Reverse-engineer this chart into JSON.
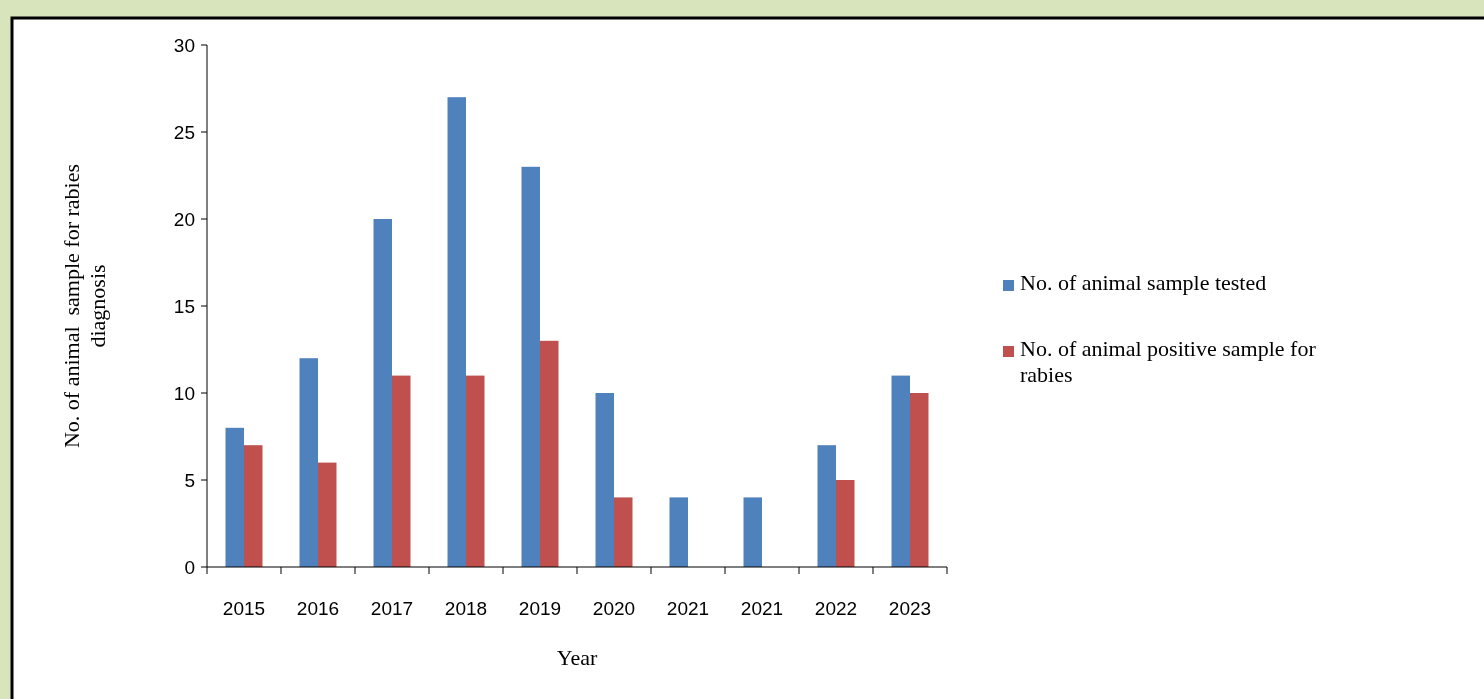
{
  "chart_data": {
    "type": "bar",
    "xlabel": "Year",
    "ylabel": "No. of animal  sample for rabies diagnosis",
    "categories": [
      "2015",
      "2016",
      "2017",
      "2018",
      "2019",
      "2020",
      "2021",
      "2021",
      "2022",
      "2023"
    ],
    "series": [
      {
        "name": "No. of animal sample tested",
        "color": "#4f81bd",
        "values": [
          8,
          12,
          20,
          27,
          23,
          10,
          4,
          4,
          7,
          11
        ]
      },
      {
        "name": "No. of animal positive sample for rabies",
        "color": "#c0504d",
        "values": [
          7,
          6,
          11,
          11,
          13,
          4,
          0,
          0,
          5,
          10
        ]
      }
    ],
    "ylim": [
      0,
      30
    ],
    "yticks": [
      0,
      5,
      10,
      15,
      20,
      25,
      30
    ],
    "grid": false,
    "legend": "right"
  }
}
